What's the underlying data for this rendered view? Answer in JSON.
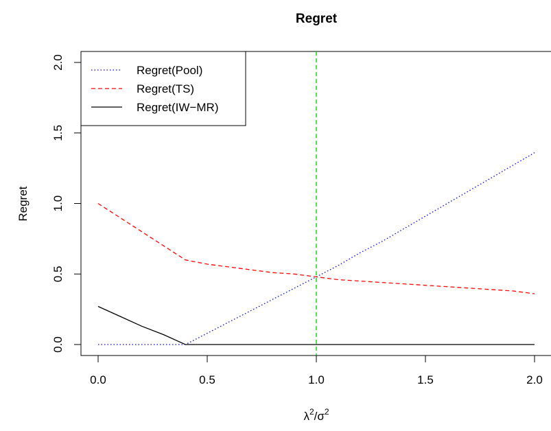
{
  "chart_data": {
    "type": "line",
    "title": "Regret",
    "xlabel": {
      "base1": "λ",
      "sup1": "2",
      "sep": "/",
      "base2": "σ",
      "sup2": "2"
    },
    "ylabel": "Regret",
    "xlim": [
      0.0,
      2.0
    ],
    "ylim": [
      0.0,
      2.0
    ],
    "xticks": [
      "0.0",
      "0.5",
      "1.0",
      "1.5",
      "2.0"
    ],
    "yticks": [
      "0.0",
      "0.5",
      "1.0",
      "1.5",
      "2.0"
    ],
    "grid": false,
    "legend_position": "top-left",
    "vline": {
      "x": 1.0,
      "color": "#00cc00",
      "style": "dashed"
    },
    "series": [
      {
        "name": "Regret(Pool)",
        "color": "#0000ff",
        "style": "dotted",
        "x": [
          0.0,
          0.1,
          0.2,
          0.3,
          0.4,
          0.5,
          0.6,
          0.7,
          0.8,
          0.9,
          1.0,
          1.1,
          1.2,
          1.3,
          1.4,
          1.5,
          1.6,
          1.7,
          1.8,
          1.9,
          2.0
        ],
        "y": [
          0.0,
          0.0,
          0.0,
          0.0,
          0.0,
          0.08,
          0.16,
          0.24,
          0.32,
          0.4,
          0.48,
          0.56,
          0.65,
          0.73,
          0.82,
          0.91,
          1.0,
          1.09,
          1.18,
          1.27,
          1.36
        ]
      },
      {
        "name": "Regret(TS)",
        "color": "#ff0000",
        "style": "dashed",
        "x": [
          0.0,
          0.1,
          0.2,
          0.3,
          0.4,
          0.5,
          0.6,
          0.7,
          0.8,
          0.9,
          1.0,
          1.1,
          1.2,
          1.3,
          1.4,
          1.5,
          1.6,
          1.7,
          1.8,
          1.9,
          2.0
        ],
        "y": [
          1.0,
          0.9,
          0.8,
          0.7,
          0.6,
          0.57,
          0.55,
          0.53,
          0.51,
          0.5,
          0.48,
          0.46,
          0.45,
          0.44,
          0.43,
          0.42,
          0.41,
          0.4,
          0.39,
          0.38,
          0.36
        ]
      },
      {
        "name": "Regret(IW−MR)",
        "color": "#000000",
        "style": "solid",
        "x": [
          0.0,
          0.1,
          0.2,
          0.3,
          0.4,
          0.5,
          0.6,
          0.7,
          0.8,
          0.9,
          1.0,
          1.1,
          1.2,
          1.3,
          1.4,
          1.5,
          1.6,
          1.7,
          1.8,
          1.9,
          2.0
        ],
        "y": [
          0.27,
          0.2,
          0.13,
          0.07,
          0.0,
          0.0,
          0.0,
          0.0,
          0.0,
          0.0,
          0.0,
          0.0,
          0.0,
          0.0,
          0.0,
          0.0,
          0.0,
          0.0,
          0.0,
          0.0,
          0.0
        ]
      }
    ]
  }
}
